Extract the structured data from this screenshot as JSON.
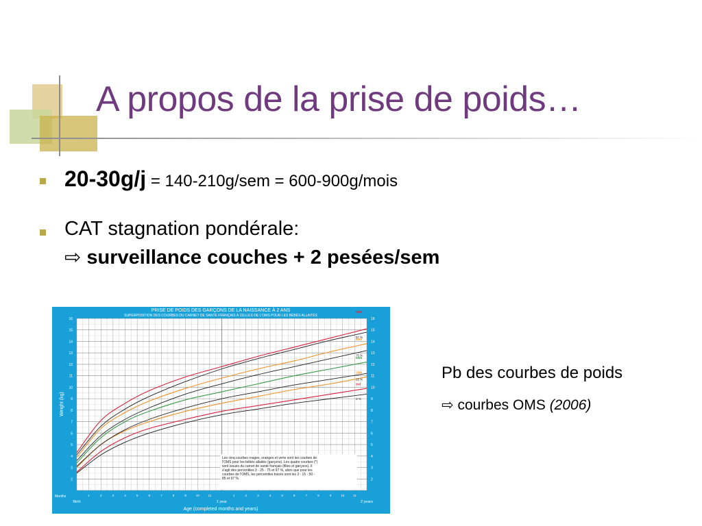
{
  "slide": {
    "title": "A propos de la prise de poids…",
    "bullet1": {
      "bold": "20-30g/j",
      "rest": " = 140-210g/sem = 600-900g/mois"
    },
    "bullet2": {
      "line1": "CAT stagnation pondérale:",
      "arrow": "⇨",
      "line2": "surveillance couches + 2 pesées/sem"
    },
    "side": {
      "line1": "Pb des courbes de poids",
      "arrow": "⇨",
      "line2": "courbes OMS",
      "year": "(2006)"
    }
  },
  "colors": {
    "title": "#6f3b7e",
    "bullet": "#b8a84a",
    "chart_frame": "#1aa0d8",
    "who_red": "#d8203a",
    "who_orange": "#f0902a",
    "who_green": "#3a9a4a",
    "carnet_black": "#202020"
  },
  "chart_data": {
    "type": "line",
    "title": "PRISE DE POIDS DES GARÇONS DE LA NAISSANCE À 2 ANS",
    "subtitle": "SUPERPOSITION DES COURBES DU CARNET DE SANTÉ FRANÇAIS À CELLES DE L'OMS POUR LES BÉBÉS ALLAITÉS",
    "xlabel": "Age (completed months and years)",
    "ylabel": "Weight (kg)",
    "x_row_label": "Months",
    "x_ticks": [
      "Birth",
      "1",
      "2",
      "3",
      "4",
      "5",
      "6",
      "7",
      "8",
      "9",
      "10",
      "11",
      "1 year",
      "1",
      "2",
      "3",
      "4",
      "5",
      "6",
      "7",
      "8",
      "9",
      "10",
      "11",
      "2 years"
    ],
    "x_range": [
      0,
      24
    ],
    "ylim": [
      1,
      16
    ],
    "y_ticks": [
      2,
      3,
      4,
      5,
      6,
      7,
      8,
      9,
      10,
      11,
      12,
      13,
      14,
      15,
      16
    ],
    "curve_labels": [
      "97th",
      "97 %",
      "85th",
      "75 %",
      "50th",
      "15th",
      "25 %",
      "3rd",
      "3 %"
    ],
    "series": [
      {
        "name": "97th",
        "group": "who",
        "color": "#d8203a",
        "x": [
          0,
          2,
          4,
          6,
          9,
          12,
          15,
          18,
          21,
          24
        ],
        "values": [
          4.3,
          7.1,
          8.6,
          9.7,
          10.9,
          11.8,
          12.7,
          13.5,
          14.3,
          15.1
        ]
      },
      {
        "name": "85th",
        "group": "who",
        "color": "#f0902a",
        "x": [
          0,
          2,
          4,
          6,
          9,
          12,
          15,
          18,
          21,
          24
        ],
        "values": [
          3.9,
          6.4,
          7.8,
          8.8,
          9.9,
          10.8,
          11.6,
          12.3,
          13.1,
          13.8
        ]
      },
      {
        "name": "50th",
        "group": "who",
        "color": "#3a9a4a",
        "x": [
          0,
          2,
          4,
          6,
          9,
          12,
          15,
          18,
          21,
          24
        ],
        "values": [
          3.4,
          5.6,
          7.0,
          7.9,
          8.9,
          9.6,
          10.3,
          11.0,
          11.6,
          12.2
        ]
      },
      {
        "name": "15th",
        "group": "who",
        "color": "#f0902a",
        "x": [
          0,
          2,
          4,
          6,
          9,
          12,
          15,
          18,
          21,
          24
        ],
        "values": [
          3.0,
          5.0,
          6.2,
          7.0,
          7.9,
          8.6,
          9.2,
          9.8,
          10.3,
          10.9
        ]
      },
      {
        "name": "3rd",
        "group": "who",
        "color": "#d8203a",
        "x": [
          0,
          2,
          4,
          6,
          9,
          12,
          15,
          18,
          21,
          24
        ],
        "values": [
          2.6,
          4.4,
          5.6,
          6.4,
          7.2,
          7.9,
          8.4,
          8.9,
          9.4,
          9.9
        ]
      },
      {
        "name": "97 %",
        "group": "carnet",
        "color": "#202020",
        "x": [
          0,
          2,
          4,
          6,
          9,
          12,
          15,
          18,
          21,
          24
        ],
        "values": [
          4.1,
          6.6,
          8.1,
          9.2,
          10.5,
          11.6,
          12.5,
          13.3,
          14.1,
          14.8
        ]
      },
      {
        "name": "75 %",
        "group": "carnet",
        "color": "#202020",
        "x": [
          0,
          2,
          4,
          6,
          9,
          12,
          15,
          18,
          21,
          24
        ],
        "values": [
          3.6,
          5.8,
          7.2,
          8.2,
          9.4,
          10.3,
          11.1,
          11.8,
          12.5,
          13.2
        ]
      },
      {
        "name": "25 %",
        "group": "carnet",
        "color": "#202020",
        "x": [
          0,
          2,
          4,
          6,
          9,
          12,
          15,
          18,
          21,
          24
        ],
        "values": [
          3.1,
          5.0,
          6.3,
          7.2,
          8.2,
          9.0,
          9.6,
          10.2,
          10.7,
          11.2
        ]
      },
      {
        "name": "3 %",
        "group": "carnet",
        "color": "#202020",
        "x": [
          0,
          2,
          4,
          6,
          9,
          12,
          15,
          18,
          21,
          24
        ],
        "values": [
          2.5,
          4.1,
          5.2,
          6.0,
          6.9,
          7.6,
          8.1,
          8.6,
          9.0,
          9.4
        ]
      }
    ],
    "note": "Les cinq courbes rouges, oranges et verte sont les courbes de l'OMS pour les bébés allaités (garçons). Les quatre courbes (*) sont issues du carnet de santé français (filles et garçons). Il s'agit des percentiles 3 - 25 - 75 et 97 %, alors que pour les courbes de l'OMS, les percentiles tracés sont les 3 - 15 - 50 - 85 et 97 %.",
    "grid": true
  }
}
